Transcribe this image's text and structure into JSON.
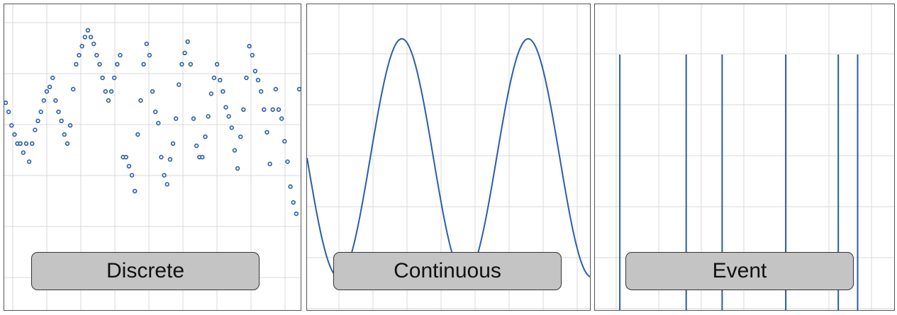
{
  "colors": {
    "series": "#2a5ea6",
    "grid": "#d8d8d8",
    "caption_bg": "#c4c4c4"
  },
  "chart_data": [
    {
      "type": "scatter",
      "label": "Discrete",
      "grid": true,
      "xlim": [
        0,
        100
      ],
      "ylim": [
        0,
        100
      ],
      "marker": "hollow-circle",
      "points": [
        [
          0,
          69
        ],
        [
          1,
          65
        ],
        [
          2,
          59
        ],
        [
          3,
          55
        ],
        [
          4,
          51
        ],
        [
          5,
          51
        ],
        [
          6,
          47
        ],
        [
          7,
          51
        ],
        [
          8,
          43
        ],
        [
          9,
          51
        ],
        [
          10,
          57
        ],
        [
          11,
          61
        ],
        [
          12,
          65
        ],
        [
          13,
          70
        ],
        [
          14,
          74
        ],
        [
          15,
          76
        ],
        [
          16,
          80
        ],
        [
          17,
          70
        ],
        [
          18,
          65
        ],
        [
          19,
          61
        ],
        [
          20,
          55
        ],
        [
          21,
          51
        ],
        [
          22,
          59
        ],
        [
          23,
          75
        ],
        [
          24,
          86
        ],
        [
          25,
          90
        ],
        [
          26,
          94
        ],
        [
          27,
          98
        ],
        [
          28,
          101
        ],
        [
          29,
          98
        ],
        [
          30,
          95
        ],
        [
          31,
          90
        ],
        [
          32,
          86
        ],
        [
          33,
          80
        ],
        [
          34,
          74
        ],
        [
          35,
          70
        ],
        [
          36,
          74
        ],
        [
          37,
          80
        ],
        [
          38,
          86
        ],
        [
          39,
          90
        ],
        [
          40,
          45
        ],
        [
          41,
          45
        ],
        [
          42,
          41
        ],
        [
          43,
          37
        ],
        [
          44,
          30
        ],
        [
          45,
          55
        ],
        [
          46,
          70
        ],
        [
          47,
          86
        ],
        [
          48,
          95
        ],
        [
          49,
          90
        ],
        [
          50,
          74
        ],
        [
          51,
          65
        ],
        [
          52,
          60
        ],
        [
          53,
          45
        ],
        [
          54,
          37
        ],
        [
          55,
          33
        ],
        [
          56,
          44
        ],
        [
          57,
          51
        ],
        [
          58,
          62
        ],
        [
          59,
          77
        ],
        [
          60,
          86
        ],
        [
          61,
          91
        ],
        [
          62,
          96
        ],
        [
          63,
          86
        ],
        [
          64,
          62
        ],
        [
          65,
          50
        ],
        [
          66,
          45
        ],
        [
          67,
          45
        ],
        [
          68,
          54
        ],
        [
          69,
          63
        ],
        [
          70,
          73
        ],
        [
          71,
          80
        ],
        [
          72,
          86
        ],
        [
          73,
          79
        ],
        [
          74,
          74
        ],
        [
          75,
          67
        ],
        [
          76,
          63
        ],
        [
          77,
          58
        ],
        [
          78,
          48
        ],
        [
          79,
          40
        ],
        [
          80,
          54
        ],
        [
          81,
          66
        ],
        [
          82,
          80
        ],
        [
          83,
          94
        ],
        [
          84,
          90
        ],
        [
          85,
          83
        ],
        [
          86,
          79
        ],
        [
          87,
          74
        ],
        [
          88,
          66
        ],
        [
          89,
          56
        ],
        [
          90,
          42
        ],
        [
          91,
          66
        ],
        [
          92,
          75
        ],
        [
          93,
          66
        ],
        [
          94,
          62
        ],
        [
          95,
          52
        ],
        [
          96,
          43
        ],
        [
          97,
          32
        ],
        [
          98,
          25
        ],
        [
          99,
          20
        ],
        [
          100,
          75
        ]
      ]
    },
    {
      "type": "line",
      "label": "Continuous",
      "grid": true,
      "xlim": [
        0,
        100
      ],
      "ylim": [
        -1.1,
        1.1
      ],
      "function": "sine",
      "cycles": 2.25,
      "phase_deg": 180
    },
    {
      "type": "event",
      "label": "Event",
      "grid": true,
      "xlim": [
        0,
        100
      ],
      "events": [
        9,
        33,
        46,
        69,
        88,
        95
      ]
    }
  ]
}
